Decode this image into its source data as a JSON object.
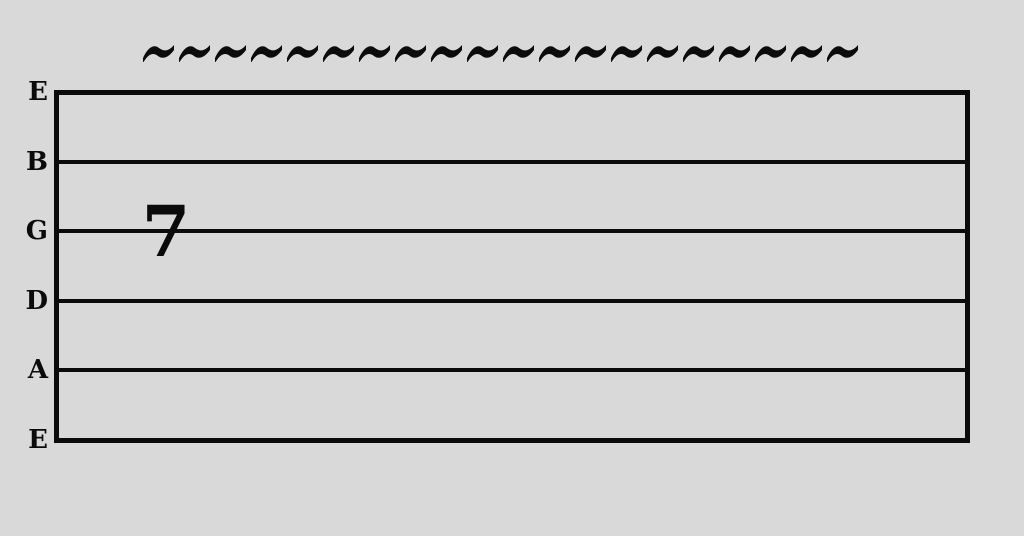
{
  "diagram": {
    "type": "guitar-tablature",
    "strings": [
      "E",
      "B",
      "G",
      "D",
      "A",
      "E"
    ],
    "notes": [
      {
        "fret": "7",
        "string": "G",
        "string_index": 2
      }
    ],
    "vibrato": {
      "symbol": "~",
      "count": 20
    }
  },
  "colors": {
    "background": "#d9d9d9",
    "ink": "#0b0b0b"
  }
}
